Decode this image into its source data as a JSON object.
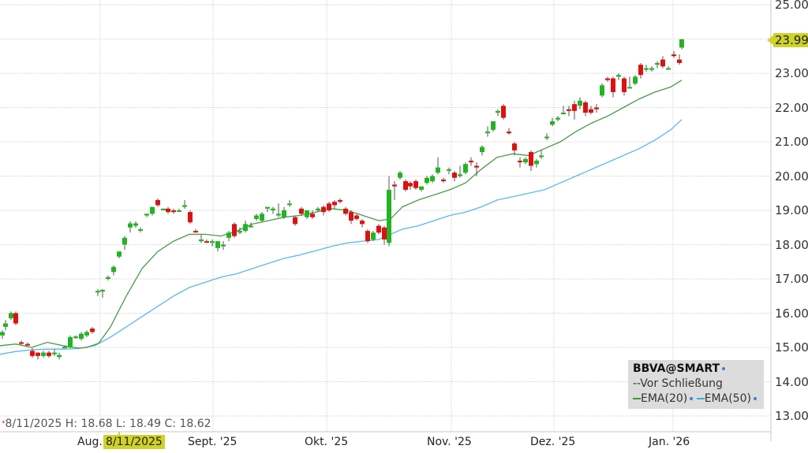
{
  "chart_data": {
    "type": "candlestick",
    "title": "BBVA@SMART",
    "symbol": "BBVA@SMART",
    "xlabel": "",
    "ylabel": "",
    "ylim": [
      13.0,
      25.0
    ],
    "y_ticks": [
      "25.00",
      "23.00",
      "22.00",
      "21.00",
      "20.00",
      "19.00",
      "18.00",
      "17.00",
      "16.00",
      "15.00",
      "14.00",
      "13.00"
    ],
    "x_ticks": [
      "Aug.",
      "Sept. '25",
      "Okt. '25",
      "Nov. '25",
      "Dez. '25",
      "Jan. '26"
    ],
    "grid": true,
    "legend_position": "bottom-right",
    "legend": [
      "BBVA@SMART",
      "Vor Schließung",
      "EMA(20)",
      "EMA(50)"
    ],
    "last_price": "23.99",
    "crosshair": {
      "date": "8/11/2025",
      "high": "18.68",
      "low": "18.49",
      "close": "18.62"
    },
    "candles": [
      {
        "x": 3,
        "o": 15.35,
        "h": 15.5,
        "l": 15.25,
        "c": 15.45
      },
      {
        "x": 7,
        "o": 15.6,
        "h": 15.8,
        "l": 15.5,
        "c": 15.7
      },
      {
        "x": 14,
        "o": 15.85,
        "h": 16.05,
        "l": 15.8,
        "c": 16.0
      },
      {
        "x": 20,
        "o": 16.0,
        "h": 16.05,
        "l": 15.65,
        "c": 15.7
      },
      {
        "x": 27,
        "o": 15.15,
        "h": 15.2,
        "l": 15.08,
        "c": 15.13
      },
      {
        "x": 35,
        "o": 15.1,
        "h": 15.15,
        "l": 15.05,
        "c": 15.08
      },
      {
        "x": 41,
        "o": 14.9,
        "h": 14.98,
        "l": 14.7,
        "c": 14.75
      },
      {
        "x": 48,
        "o": 14.85,
        "h": 14.85,
        "l": 14.65,
        "c": 14.75
      },
      {
        "x": 55,
        "o": 14.75,
        "h": 14.9,
        "l": 14.7,
        "c": 14.85
      },
      {
        "x": 62,
        "o": 14.85,
        "h": 14.9,
        "l": 14.7,
        "c": 14.75
      },
      {
        "x": 69,
        "o": 14.8,
        "h": 14.95,
        "l": 14.75,
        "c": 14.85
      },
      {
        "x": 75,
        "o": 14.72,
        "h": 14.85,
        "l": 14.65,
        "c": 14.78
      },
      {
        "x": 82,
        "o": 15.0,
        "h": 15.05,
        "l": 14.98,
        "c": 15.02
      },
      {
        "x": 89,
        "o": 15.0,
        "h": 15.35,
        "l": 14.98,
        "c": 15.3
      },
      {
        "x": 96,
        "o": 15.3,
        "h": 15.35,
        "l": 15.25,
        "c": 15.32
      },
      {
        "x": 103,
        "o": 15.25,
        "h": 15.45,
        "l": 15.2,
        "c": 15.4
      },
      {
        "x": 110,
        "o": 15.35,
        "h": 15.5,
        "l": 15.3,
        "c": 15.45
      },
      {
        "x": 117,
        "o": 15.55,
        "h": 15.6,
        "l": 15.4,
        "c": 15.45
      },
      {
        "x": 124,
        "o": 16.65,
        "h": 16.7,
        "l": 16.5,
        "c": 16.65
      },
      {
        "x": 130,
        "o": 16.65,
        "h": 16.7,
        "l": 16.45,
        "c": 16.68
      },
      {
        "x": 137,
        "o": 17.0,
        "h": 17.1,
        "l": 16.95,
        "c": 17.05
      },
      {
        "x": 144,
        "o": 17.2,
        "h": 17.4,
        "l": 17.1,
        "c": 17.35
      },
      {
        "x": 151,
        "o": 17.65,
        "h": 17.8,
        "l": 17.6,
        "c": 17.8
      },
      {
        "x": 158,
        "o": 18.0,
        "h": 18.25,
        "l": 17.85,
        "c": 18.2
      },
      {
        "x": 165,
        "o": 18.5,
        "h": 18.68,
        "l": 18.35,
        "c": 18.62
      },
      {
        "x": 172,
        "o": 18.55,
        "h": 18.68,
        "l": 18.49,
        "c": 18.62
      },
      {
        "x": 178,
        "o": 18.45,
        "h": 18.5,
        "l": 18.35,
        "c": 18.45
      },
      {
        "x": 186,
        "o": 18.85,
        "h": 18.9,
        "l": 18.8,
        "c": 18.9
      },
      {
        "x": 193,
        "o": 18.9,
        "h": 19.1,
        "l": 18.85,
        "c": 19.1
      },
      {
        "x": 200,
        "o": 19.3,
        "h": 19.35,
        "l": 19.1,
        "c": 19.15
      },
      {
        "x": 207,
        "o": 19.0,
        "h": 19.05,
        "l": 19.0,
        "c": 19.05
      },
      {
        "x": 213,
        "o": 19.05,
        "h": 19.1,
        "l": 18.9,
        "c": 18.95
      },
      {
        "x": 220,
        "o": 19.0,
        "h": 19.05,
        "l": 18.9,
        "c": 18.95
      },
      {
        "x": 227,
        "o": 19.0,
        "h": 19.05,
        "l": 18.95,
        "c": 19.0
      },
      {
        "x": 234,
        "o": 19.1,
        "h": 19.3,
        "l": 19.05,
        "c": 19.15
      },
      {
        "x": 241,
        "o": 18.95,
        "h": 19.0,
        "l": 18.6,
        "c": 18.65
      },
      {
        "x": 248,
        "o": 18.4,
        "h": 18.45,
        "l": 18.35,
        "c": 18.38
      },
      {
        "x": 255,
        "o": 18.1,
        "h": 18.3,
        "l": 18.05,
        "c": 18.15
      },
      {
        "x": 262,
        "o": 18.1,
        "h": 18.15,
        "l": 18.05,
        "c": 18.08
      },
      {
        "x": 269,
        "o": 18.05,
        "h": 18.15,
        "l": 17.95,
        "c": 18.1
      },
      {
        "x": 276,
        "o": 17.9,
        "h": 18.1,
        "l": 17.8,
        "c": 18.1
      },
      {
        "x": 283,
        "o": 17.95,
        "h": 18.1,
        "l": 17.85,
        "c": 18.0
      },
      {
        "x": 290,
        "o": 18.2,
        "h": 18.4,
        "l": 18.1,
        "c": 18.35
      },
      {
        "x": 297,
        "o": 18.6,
        "h": 18.65,
        "l": 18.2,
        "c": 18.25
      },
      {
        "x": 304,
        "o": 18.35,
        "h": 18.5,
        "l": 18.3,
        "c": 18.4
      },
      {
        "x": 311,
        "o": 18.4,
        "h": 18.7,
        "l": 18.35,
        "c": 18.6
      },
      {
        "x": 318,
        "o": 18.55,
        "h": 18.65,
        "l": 18.5,
        "c": 18.55
      },
      {
        "x": 325,
        "o": 18.75,
        "h": 18.9,
        "l": 18.7,
        "c": 18.85
      },
      {
        "x": 332,
        "o": 18.7,
        "h": 18.95,
        "l": 18.65,
        "c": 18.9
      },
      {
        "x": 339,
        "o": 19.05,
        "h": 19.1,
        "l": 18.95,
        "c": 19.1
      },
      {
        "x": 346,
        "o": 19.0,
        "h": 19.1,
        "l": 18.9,
        "c": 19.05
      },
      {
        "x": 353,
        "o": 18.85,
        "h": 19.2,
        "l": 18.8,
        "c": 18.9
      },
      {
        "x": 360,
        "o": 18.8,
        "h": 19.1,
        "l": 18.75,
        "c": 19.0
      },
      {
        "x": 367,
        "o": 19.2,
        "h": 19.3,
        "l": 19.1,
        "c": 19.2
      },
      {
        "x": 374,
        "o": 18.8,
        "h": 18.85,
        "l": 18.55,
        "c": 18.6
      },
      {
        "x": 382,
        "o": 19.05,
        "h": 19.1,
        "l": 18.85,
        "c": 18.9
      },
      {
        "x": 389,
        "o": 18.8,
        "h": 19.0,
        "l": 18.75,
        "c": 19.0
      },
      {
        "x": 396,
        "o": 18.9,
        "h": 19.0,
        "l": 18.75,
        "c": 18.8
      },
      {
        "x": 403,
        "o": 19.0,
        "h": 19.1,
        "l": 18.95,
        "c": 19.05
      },
      {
        "x": 410,
        "o": 19.1,
        "h": 19.15,
        "l": 18.85,
        "c": 18.95
      },
      {
        "x": 417,
        "o": 19.2,
        "h": 19.25,
        "l": 18.95,
        "c": 19.0
      },
      {
        "x": 424,
        "o": 19.25,
        "h": 19.3,
        "l": 19.05,
        "c": 19.15
      },
      {
        "x": 431,
        "o": 19.3,
        "h": 19.35,
        "l": 19.2,
        "c": 19.25
      },
      {
        "x": 438,
        "o": 19.05,
        "h": 19.1,
        "l": 18.85,
        "c": 18.9
      },
      {
        "x": 445,
        "o": 18.95,
        "h": 19.0,
        "l": 18.6,
        "c": 18.7
      },
      {
        "x": 452,
        "o": 18.85,
        "h": 18.9,
        "l": 18.7,
        "c": 18.75
      },
      {
        "x": 459,
        "o": 18.7,
        "h": 18.75,
        "l": 18.5,
        "c": 18.6
      },
      {
        "x": 466,
        "o": 18.4,
        "h": 18.45,
        "l": 18.05,
        "c": 18.1
      },
      {
        "x": 473,
        "o": 18.15,
        "h": 18.4,
        "l": 18.1,
        "c": 18.35
      },
      {
        "x": 480,
        "o": 18.55,
        "h": 18.6,
        "l": 18.3,
        "c": 18.35
      },
      {
        "x": 487,
        "o": 18.5,
        "h": 18.55,
        "l": 18.0,
        "c": 18.15
      },
      {
        "x": 493,
        "o": 18.05,
        "h": 20.0,
        "l": 17.95,
        "c": 19.6
      },
      {
        "x": 500,
        "o": 19.75,
        "h": 19.85,
        "l": 19.3,
        "c": 19.7
      },
      {
        "x": 507,
        "o": 19.95,
        "h": 20.15,
        "l": 19.9,
        "c": 20.1
      },
      {
        "x": 514,
        "o": 19.85,
        "h": 19.9,
        "l": 19.55,
        "c": 19.6
      },
      {
        "x": 520,
        "o": 19.8,
        "h": 19.85,
        "l": 19.6,
        "c": 19.7
      },
      {
        "x": 527,
        "o": 19.85,
        "h": 19.9,
        "l": 19.6,
        "c": 19.65
      },
      {
        "x": 534,
        "o": 19.6,
        "h": 19.7,
        "l": 19.55,
        "c": 19.7
      },
      {
        "x": 541,
        "o": 19.8,
        "h": 20.0,
        "l": 19.75,
        "c": 19.95
      },
      {
        "x": 548,
        "o": 19.85,
        "h": 20.05,
        "l": 19.8,
        "c": 20.0
      },
      {
        "x": 555,
        "o": 20.1,
        "h": 20.55,
        "l": 20.05,
        "c": 20.25
      },
      {
        "x": 562,
        "o": 19.9,
        "h": 19.95,
        "l": 19.8,
        "c": 19.85
      },
      {
        "x": 569,
        "o": 20.2,
        "h": 20.25,
        "l": 20.05,
        "c": 20.2
      },
      {
        "x": 576,
        "o": 20.1,
        "h": 20.15,
        "l": 19.85,
        "c": 19.95
      },
      {
        "x": 583,
        "o": 20.0,
        "h": 20.3,
        "l": 19.95,
        "c": 20.05
      },
      {
        "x": 590,
        "o": 20.1,
        "h": 20.4,
        "l": 20.05,
        "c": 20.35
      },
      {
        "x": 597,
        "o": 20.45,
        "h": 20.55,
        "l": 20.3,
        "c": 20.4
      },
      {
        "x": 604,
        "o": 20.3,
        "h": 20.4,
        "l": 20.0,
        "c": 20.25
      },
      {
        "x": 611,
        "o": 20.7,
        "h": 20.9,
        "l": 20.6,
        "c": 20.85
      },
      {
        "x": 618,
        "o": 21.25,
        "h": 21.45,
        "l": 21.15,
        "c": 21.3
      },
      {
        "x": 625,
        "o": 21.35,
        "h": 21.55,
        "l": 21.3,
        "c": 21.6
      },
      {
        "x": 631,
        "o": 21.85,
        "h": 21.95,
        "l": 21.75,
        "c": 21.9
      },
      {
        "x": 638,
        "o": 22.05,
        "h": 22.1,
        "l": 21.65,
        "c": 21.7
      },
      {
        "x": 645,
        "o": 21.3,
        "h": 21.4,
        "l": 21.2,
        "c": 21.25
      },
      {
        "x": 652,
        "o": 20.95,
        "h": 21.0,
        "l": 20.6,
        "c": 20.75
      },
      {
        "x": 659,
        "o": 20.45,
        "h": 20.55,
        "l": 20.25,
        "c": 20.4
      },
      {
        "x": 666,
        "o": 20.4,
        "h": 20.55,
        "l": 20.35,
        "c": 20.5
      },
      {
        "x": 673,
        "o": 20.7,
        "h": 20.75,
        "l": 20.15,
        "c": 20.3
      },
      {
        "x": 680,
        "o": 20.35,
        "h": 20.5,
        "l": 20.25,
        "c": 20.45
      },
      {
        "x": 686,
        "o": 20.6,
        "h": 20.75,
        "l": 20.5,
        "c": 20.6
      },
      {
        "x": 693,
        "o": 21.15,
        "h": 21.25,
        "l": 21.05,
        "c": 21.15
      },
      {
        "x": 700,
        "o": 21.5,
        "h": 21.7,
        "l": 21.45,
        "c": 21.6
      },
      {
        "x": 707,
        "o": 21.65,
        "h": 21.75,
        "l": 21.6,
        "c": 21.7
      },
      {
        "x": 714,
        "o": 21.85,
        "h": 22.05,
        "l": 21.8,
        "c": 21.85
      },
      {
        "x": 721,
        "o": 21.95,
        "h": 22.05,
        "l": 21.75,
        "c": 21.9
      },
      {
        "x": 728,
        "o": 22.1,
        "h": 22.2,
        "l": 21.65,
        "c": 21.9
      },
      {
        "x": 735,
        "o": 22.05,
        "h": 22.3,
        "l": 21.95,
        "c": 22.2
      },
      {
        "x": 742,
        "o": 22.15,
        "h": 22.2,
        "l": 21.75,
        "c": 21.85
      },
      {
        "x": 749,
        "o": 21.95,
        "h": 22.05,
        "l": 21.8,
        "c": 21.85
      },
      {
        "x": 756,
        "o": 22.0,
        "h": 22.1,
        "l": 21.85,
        "c": 21.95
      },
      {
        "x": 763,
        "o": 22.35,
        "h": 22.7,
        "l": 22.3,
        "c": 22.65
      },
      {
        "x": 770,
        "o": 22.85,
        "h": 22.9,
        "l": 22.75,
        "c": 22.8
      },
      {
        "x": 777,
        "o": 22.85,
        "h": 22.9,
        "l": 22.3,
        "c": 22.45
      },
      {
        "x": 784,
        "o": 22.9,
        "h": 23.0,
        "l": 22.8,
        "c": 22.95
      },
      {
        "x": 791,
        "o": 22.85,
        "h": 22.9,
        "l": 22.35,
        "c": 22.45
      },
      {
        "x": 798,
        "o": 22.6,
        "h": 22.9,
        "l": 22.6,
        "c": 22.6
      },
      {
        "x": 805,
        "o": 22.7,
        "h": 22.95,
        "l": 22.65,
        "c": 22.9
      },
      {
        "x": 812,
        "o": 23.25,
        "h": 23.3,
        "l": 22.85,
        "c": 22.95
      },
      {
        "x": 819,
        "o": 23.15,
        "h": 23.25,
        "l": 23.05,
        "c": 23.15
      },
      {
        "x": 826,
        "o": 23.1,
        "h": 23.2,
        "l": 23.05,
        "c": 23.15
      },
      {
        "x": 833,
        "o": 23.25,
        "h": 23.35,
        "l": 23.15,
        "c": 23.3
      },
      {
        "x": 840,
        "o": 23.4,
        "h": 23.5,
        "l": 23.15,
        "c": 23.2
      },
      {
        "x": 847,
        "o": 23.15,
        "h": 23.2,
        "l": 23.1,
        "c": 23.15
      },
      {
        "x": 854,
        "o": 23.55,
        "h": 23.65,
        "l": 23.45,
        "c": 23.5
      },
      {
        "x": 861,
        "o": 23.4,
        "h": 23.55,
        "l": 23.25,
        "c": 23.3
      },
      {
        "x": 864,
        "o": 23.75,
        "h": 24.0,
        "l": 23.7,
        "c": 23.99
      }
    ],
    "ema20": [
      [
        0,
        15.05
      ],
      [
        20,
        15.1
      ],
      [
        40,
        15.0
      ],
      [
        60,
        15.15
      ],
      [
        80,
        15.05
      ],
      [
        100,
        14.98
      ],
      [
        110,
        15.0
      ],
      [
        125,
        15.12
      ],
      [
        140,
        15.6
      ],
      [
        160,
        16.5
      ],
      [
        180,
        17.3
      ],
      [
        200,
        17.8
      ],
      [
        220,
        18.1
      ],
      [
        240,
        18.3
      ],
      [
        260,
        18.3
      ],
      [
        280,
        18.25
      ],
      [
        300,
        18.4
      ],
      [
        320,
        18.6
      ],
      [
        340,
        18.7
      ],
      [
        360,
        18.8
      ],
      [
        380,
        18.85
      ],
      [
        400,
        18.95
      ],
      [
        420,
        19.05
      ],
      [
        440,
        19.0
      ],
      [
        460,
        18.85
      ],
      [
        480,
        18.7
      ],
      [
        495,
        18.75
      ],
      [
        510,
        19.1
      ],
      [
        530,
        19.3
      ],
      [
        550,
        19.45
      ],
      [
        570,
        19.6
      ],
      [
        590,
        19.8
      ],
      [
        610,
        20.2
      ],
      [
        630,
        20.55
      ],
      [
        650,
        20.65
      ],
      [
        670,
        20.6
      ],
      [
        690,
        20.8
      ],
      [
        710,
        21.0
      ],
      [
        730,
        21.3
      ],
      [
        750,
        21.55
      ],
      [
        770,
        21.75
      ],
      [
        790,
        22.0
      ],
      [
        810,
        22.25
      ],
      [
        830,
        22.45
      ],
      [
        850,
        22.6
      ],
      [
        864,
        22.8
      ]
    ],
    "ema50": [
      [
        0,
        14.8
      ],
      [
        20,
        14.88
      ],
      [
        40,
        14.93
      ],
      [
        60,
        14.95
      ],
      [
        80,
        14.95
      ],
      [
        100,
        14.97
      ],
      [
        120,
        15.05
      ],
      [
        140,
        15.3
      ],
      [
        160,
        15.6
      ],
      [
        180,
        15.9
      ],
      [
        200,
        16.2
      ],
      [
        220,
        16.5
      ],
      [
        240,
        16.75
      ],
      [
        260,
        16.9
      ],
      [
        280,
        17.05
      ],
      [
        300,
        17.15
      ],
      [
        320,
        17.3
      ],
      [
        340,
        17.45
      ],
      [
        360,
        17.6
      ],
      [
        380,
        17.7
      ],
      [
        400,
        17.82
      ],
      [
        420,
        17.95
      ],
      [
        440,
        18.05
      ],
      [
        460,
        18.1
      ],
      [
        480,
        18.15
      ],
      [
        495,
        18.3
      ],
      [
        510,
        18.45
      ],
      [
        530,
        18.55
      ],
      [
        550,
        18.7
      ],
      [
        570,
        18.85
      ],
      [
        590,
        18.95
      ],
      [
        610,
        19.1
      ],
      [
        630,
        19.3
      ],
      [
        650,
        19.4
      ],
      [
        670,
        19.5
      ],
      [
        690,
        19.6
      ],
      [
        710,
        19.8
      ],
      [
        730,
        20.0
      ],
      [
        750,
        20.2
      ],
      [
        770,
        20.4
      ],
      [
        790,
        20.6
      ],
      [
        810,
        20.8
      ],
      [
        830,
        21.05
      ],
      [
        850,
        21.35
      ],
      [
        864,
        21.65
      ]
    ],
    "series_colors": {
      "up": "#22b422",
      "down": "#dd1111",
      "ema20": "#4a9a4a",
      "ema50": "#5ab8ee"
    }
  },
  "price_axis": {
    "labels": [
      "25.00",
      "23.00",
      "22.00",
      "21.00",
      "20.00",
      "19.00",
      "18.00",
      "17.00",
      "16.00",
      "15.00",
      "14.00",
      "13.00"
    ],
    "current_price_tag": "23.99"
  },
  "time_axis": {
    "labels": [
      "Aug.",
      "Sept. '25",
      "Okt. '25",
      "Nov. '25",
      "Dez. '25",
      "Jan. '26"
    ],
    "crosshair_date": "8/11/2025"
  },
  "ohlc_readout": {
    "date": "8/11/2025",
    "h_label": "H:",
    "h": "18.68",
    "l_label": "L:",
    "l": "18.49",
    "c_label": "C:",
    "c": "18.62"
  },
  "legend": {
    "symbol": "BBVA@SMART",
    "prior_close": "Vor Schließung",
    "ema20": "EMA(20)",
    "ema50": "EMA(50)"
  },
  "colors": {
    "highlight": "#cfd22a",
    "grid": "#dddddd",
    "up": "#22b422",
    "down": "#dd1111"
  }
}
